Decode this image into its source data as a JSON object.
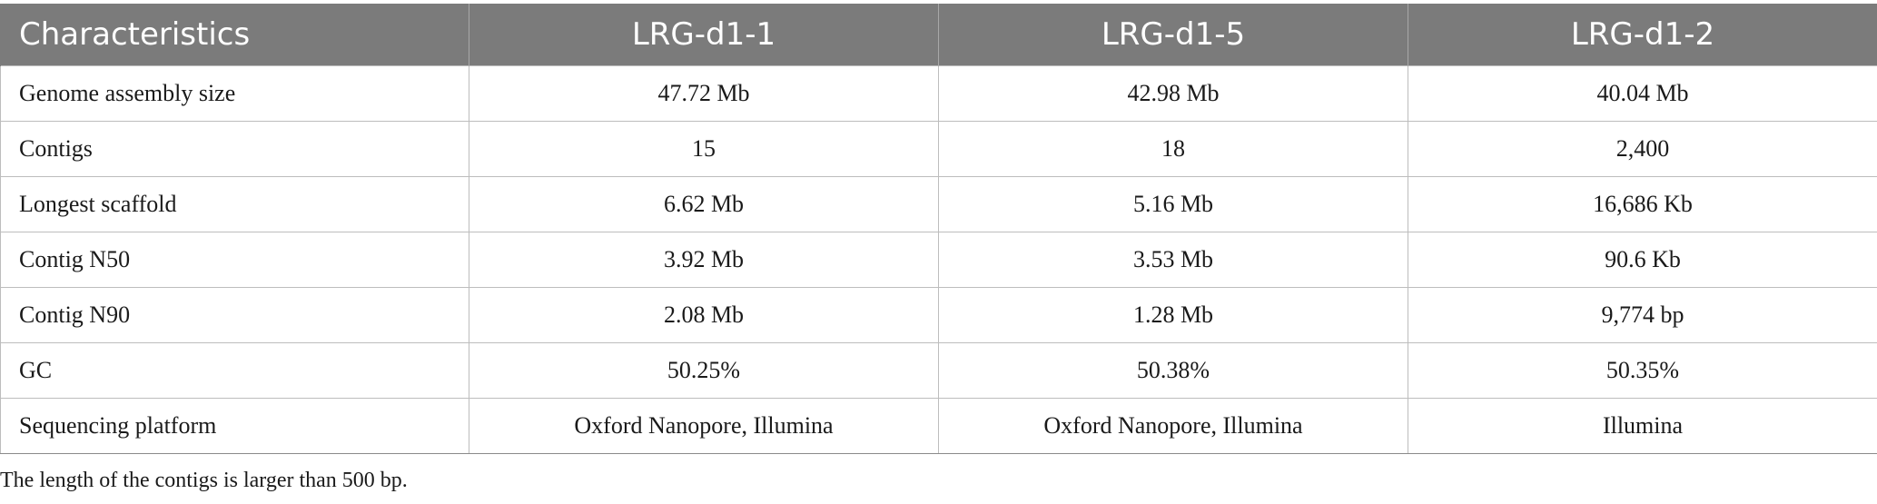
{
  "table": {
    "headers": [
      "Characteristics",
      "LRG-d1-1",
      "LRG-d1-5",
      "LRG-d1-2"
    ],
    "rows": [
      [
        "Genome assembly size",
        "47.72 Mb",
        "42.98 Mb",
        "40.04 Mb"
      ],
      [
        "Contigs",
        "15",
        "18",
        "2,400"
      ],
      [
        "Longest scaffold",
        "6.62 Mb",
        "5.16 Mb",
        "16,686 Kb"
      ],
      [
        "Contig N50",
        "3.92 Mb",
        "3.53 Mb",
        "90.6 Kb"
      ],
      [
        "Contig N90",
        "2.08 Mb",
        "1.28 Mb",
        "9,774 bp"
      ],
      [
        "GC",
        "50.25%",
        "50.38%",
        "50.35%"
      ],
      [
        "Sequencing platform",
        "Oxford Nanopore, Illumina",
        "Oxford Nanopore, Illumina",
        "Illumina"
      ]
    ]
  },
  "footnote": "The length of the contigs is larger than 500 bp.",
  "colors": {
    "header_bg": "#7b7b7b",
    "header_text": "#ffffff",
    "grid": "#bdbdbd"
  }
}
